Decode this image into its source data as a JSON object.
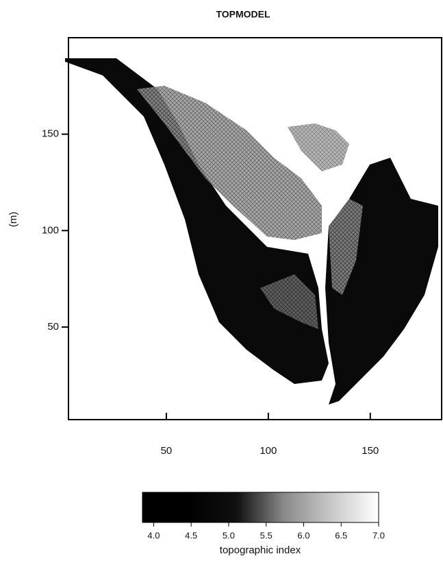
{
  "chart_data": {
    "type": "raster",
    "title": "TOPMODEL",
    "y_label": "(m)",
    "x_label": "topographic index",
    "xlim": [
      2,
      185
    ],
    "xticks": [
      50,
      100,
      150
    ],
    "ylim": [
      2,
      200
    ],
    "yticks": [
      50,
      100,
      150
    ],
    "colorbar": {
      "clim": [
        3.85,
        7.0
      ],
      "ticks": [
        {
          "value": 4,
          "label": "4.0"
        },
        {
          "value": 4.5,
          "label": "4.5"
        },
        {
          "value": 5,
          "label": "5.0"
        },
        {
          "value": 5.5,
          "label": "5.5"
        },
        {
          "value": 6,
          "label": "6.0"
        },
        {
          "value": 6.5,
          "label": "6.5"
        },
        {
          "value": 7,
          "label": "7.0"
        }
      ],
      "colormap": [
        "#000000",
        "#000000",
        "#111111",
        "#8a8a8a",
        "#c8c8c8",
        "#ffffff"
      ]
    }
  }
}
